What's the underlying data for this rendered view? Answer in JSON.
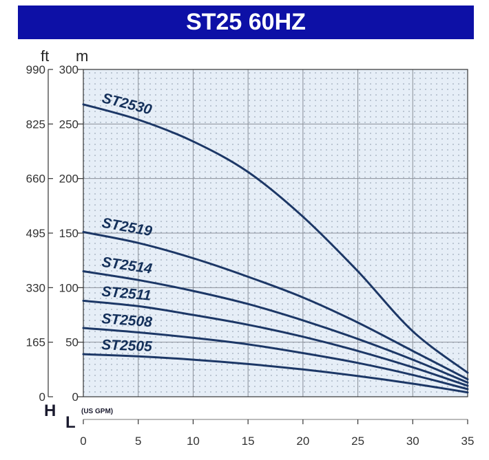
{
  "chart_data": {
    "type": "line",
    "title": "ST25 60HZ",
    "xlabel": "L",
    "x_unit": "(US GPM)",
    "ylabel": "H",
    "y_unit_m": "m",
    "y_unit_ft": "ft",
    "xlim": [
      0,
      35
    ],
    "ylim": [
      0,
      300
    ],
    "x_ticks": [
      0,
      5,
      10,
      15,
      20,
      25,
      30,
      35
    ],
    "y_ticks_m": [
      0,
      50,
      100,
      150,
      200,
      250,
      300
    ],
    "y_ticks_ft": [
      0,
      165,
      330,
      495,
      660,
      825,
      990
    ],
    "grid": true,
    "colors": {
      "title_bg": "#0d10a6",
      "curve": "#1c3766",
      "plot_bg": "#e6eef7",
      "grid": "#8a8f98"
    },
    "series": [
      {
        "name": "ST2530",
        "x": [
          0,
          5,
          10,
          15,
          20,
          25,
          30,
          35
        ],
        "values": [
          268,
          254,
          234,
          206,
          165,
          115,
          60,
          22
        ]
      },
      {
        "name": "ST2519",
        "x": [
          0,
          5,
          10,
          15,
          20,
          25,
          30,
          35
        ],
        "values": [
          151,
          141,
          127,
          110,
          91,
          68,
          42,
          16
        ]
      },
      {
        "name": "ST2514",
        "x": [
          0,
          5,
          10,
          15,
          20,
          25,
          30,
          35
        ],
        "values": [
          115,
          107,
          97,
          85,
          70,
          53,
          34,
          13
        ]
      },
      {
        "name": "ST2511",
        "x": [
          0,
          5,
          10,
          15,
          20,
          25,
          30,
          35
        ],
        "values": [
          88,
          83,
          75,
          66,
          55,
          42,
          27,
          10
        ]
      },
      {
        "name": "ST2508",
        "x": [
          0,
          5,
          10,
          15,
          20,
          25,
          30,
          35
        ],
        "values": [
          63,
          59,
          54,
          48,
          40,
          31,
          20,
          7
        ]
      },
      {
        "name": "ST2505",
        "x": [
          0,
          5,
          10,
          15,
          20,
          25,
          30,
          35
        ],
        "values": [
          39,
          37,
          34,
          30,
          25,
          19,
          12,
          4
        ]
      }
    ]
  }
}
